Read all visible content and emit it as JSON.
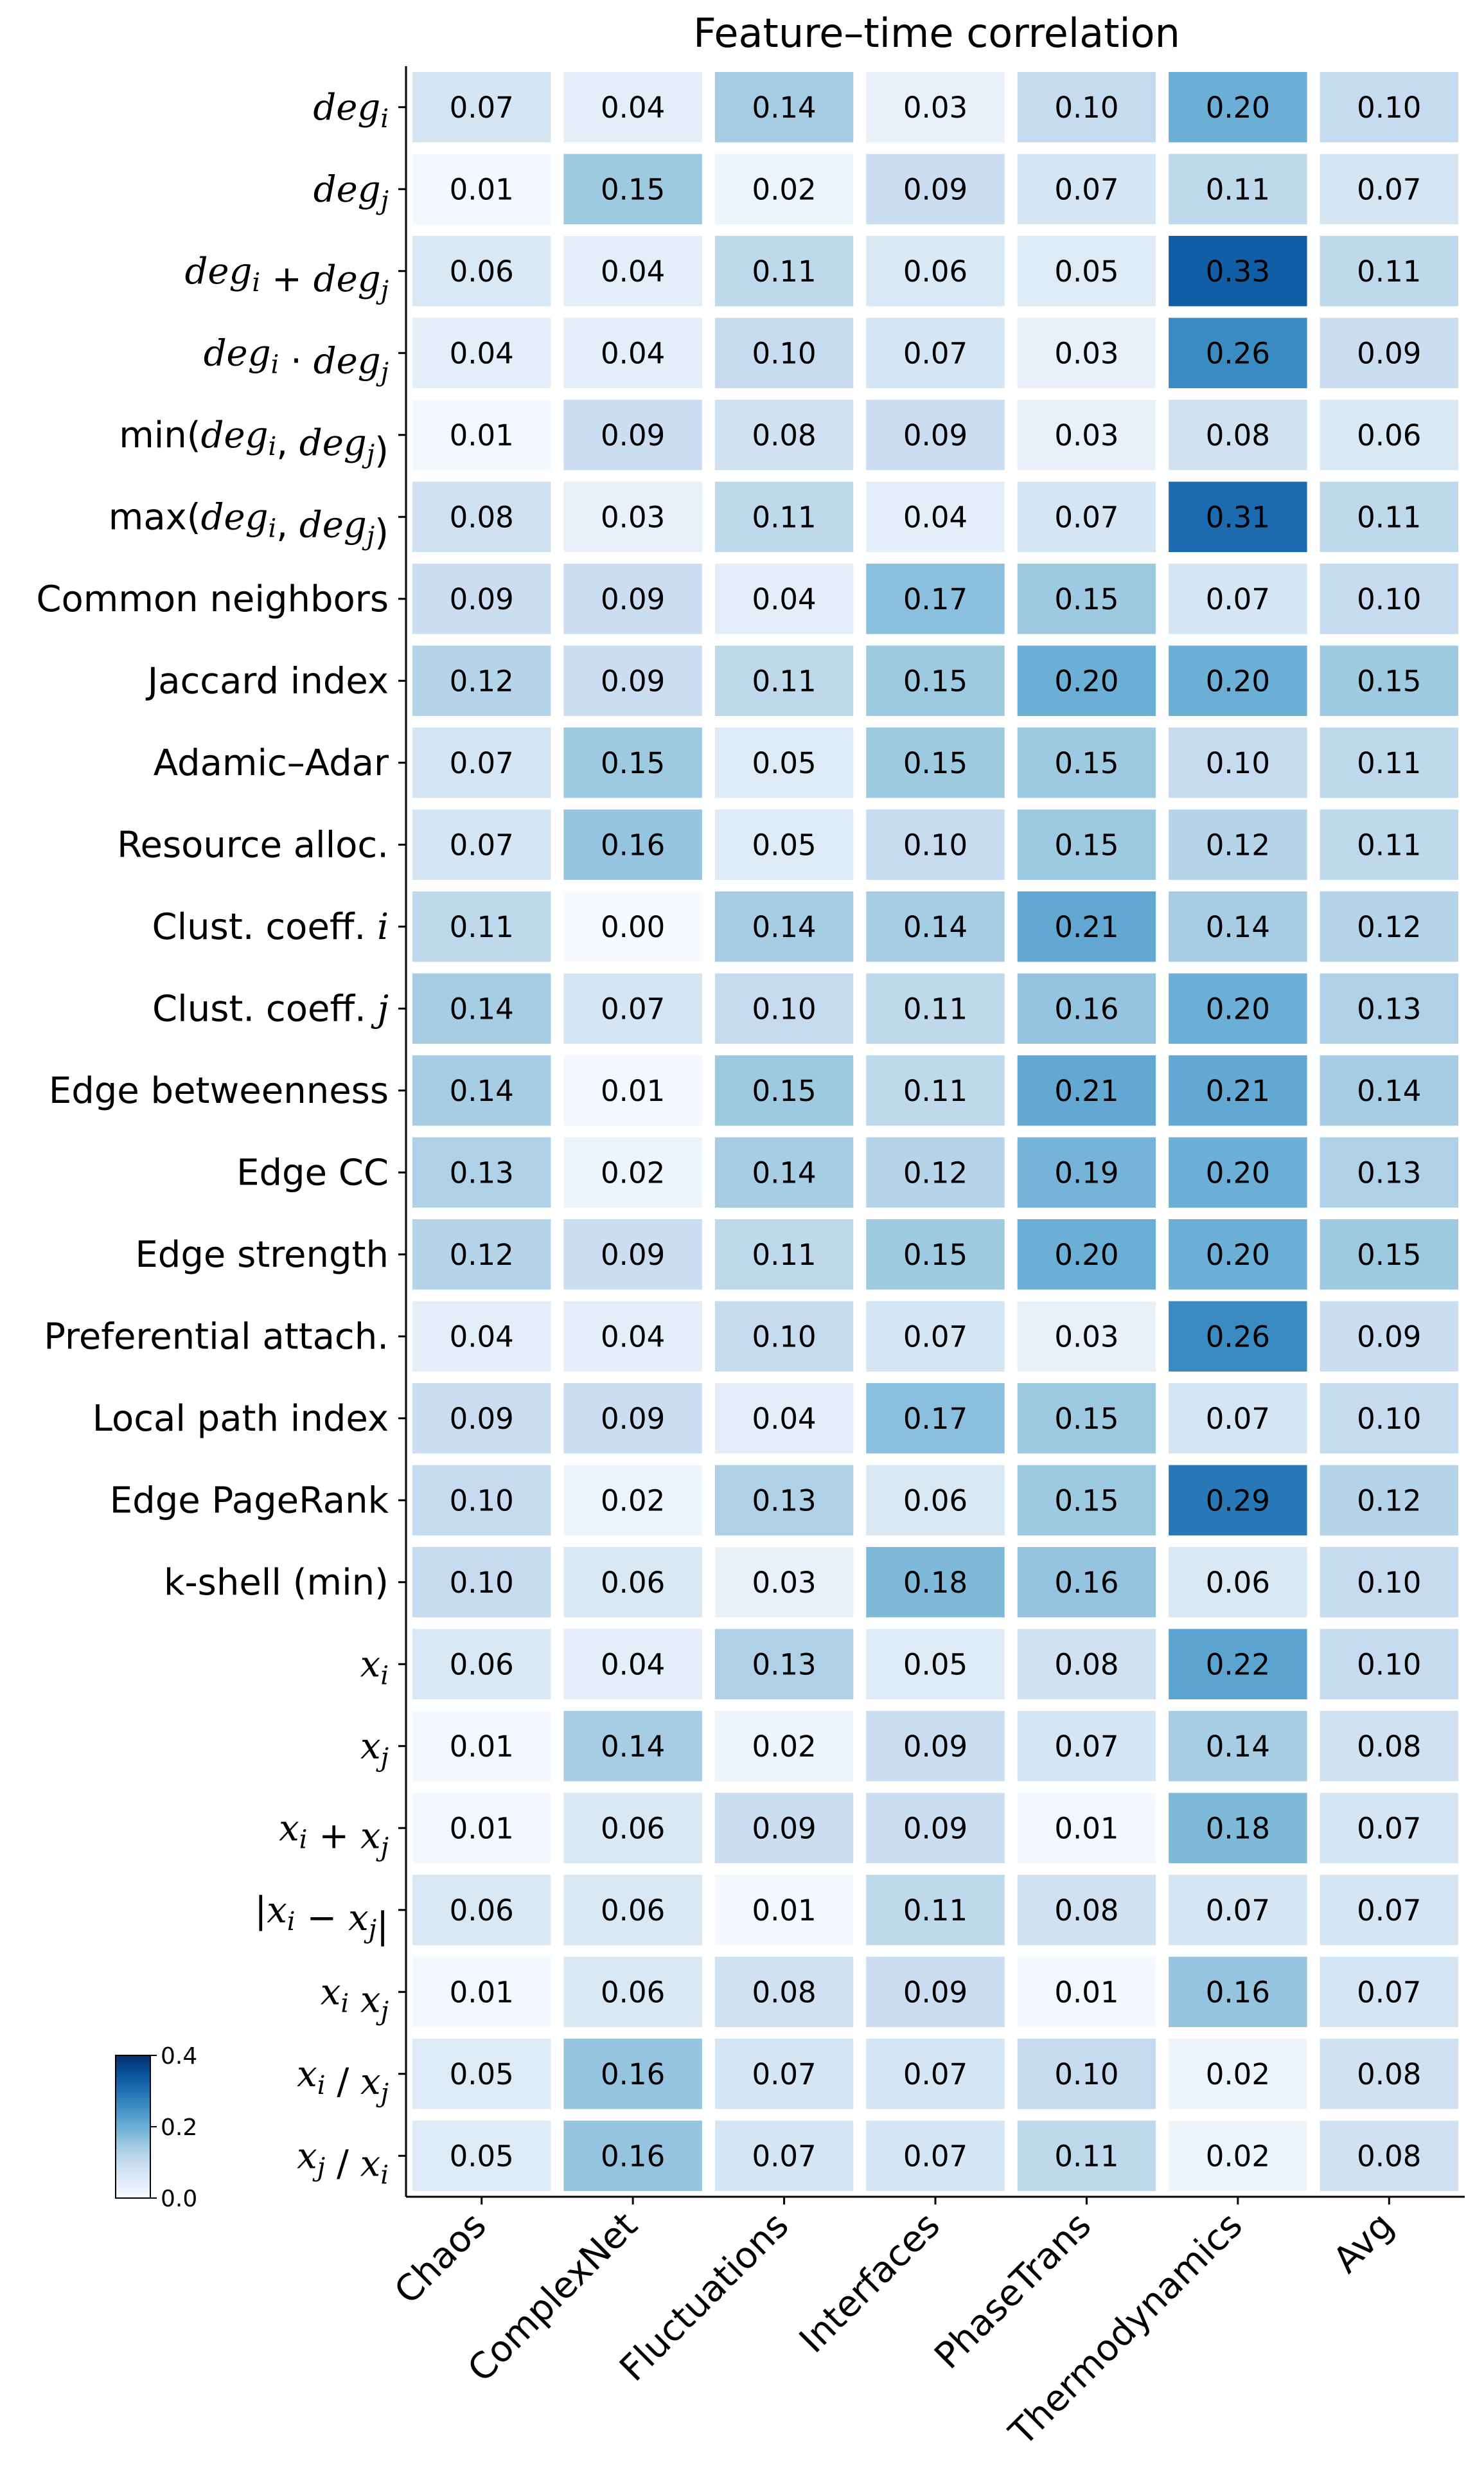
{
  "chart_data": {
    "type": "heatmap",
    "title": "Feature–time correlation",
    "columns": [
      "Chaos",
      "ComplexNet",
      "Fluctuations",
      "Interfaces",
      "PhaseTrans",
      "Thermodynamics",
      "Avg"
    ],
    "rows": [
      {
        "label": "deg_i",
        "values": [
          0.07,
          0.04,
          0.14,
          0.03,
          0.1,
          0.2,
          0.1
        ]
      },
      {
        "label": "deg_j",
        "values": [
          0.01,
          0.15,
          0.02,
          0.09,
          0.07,
          0.11,
          0.07
        ]
      },
      {
        "label": "deg_i + deg_j",
        "values": [
          0.06,
          0.04,
          0.11,
          0.06,
          0.05,
          0.33,
          0.11
        ]
      },
      {
        "label": "deg_i · deg_j",
        "values": [
          0.04,
          0.04,
          0.1,
          0.07,
          0.03,
          0.26,
          0.09
        ]
      },
      {
        "label": "min(deg_i, deg_j)",
        "values": [
          0.01,
          0.09,
          0.08,
          0.09,
          0.03,
          0.08,
          0.06
        ]
      },
      {
        "label": "max(deg_i, deg_j)",
        "values": [
          0.08,
          0.03,
          0.11,
          0.04,
          0.07,
          0.31,
          0.11
        ]
      },
      {
        "label": "Common neighbors",
        "values": [
          0.09,
          0.09,
          0.04,
          0.17,
          0.15,
          0.07,
          0.1
        ]
      },
      {
        "label": "Jaccard index",
        "values": [
          0.12,
          0.09,
          0.11,
          0.15,
          0.2,
          0.2,
          0.15
        ]
      },
      {
        "label": "Adamic–Adar",
        "values": [
          0.07,
          0.15,
          0.05,
          0.15,
          0.15,
          0.1,
          0.11
        ]
      },
      {
        "label": "Resource alloc.",
        "values": [
          0.07,
          0.16,
          0.05,
          0.1,
          0.15,
          0.12,
          0.11
        ]
      },
      {
        "label": "Clust. coeff. i",
        "values": [
          0.11,
          0.0,
          0.14,
          0.14,
          0.21,
          0.14,
          0.12
        ]
      },
      {
        "label": "Clust. coeff. j",
        "values": [
          0.14,
          0.07,
          0.1,
          0.11,
          0.16,
          0.2,
          0.13
        ]
      },
      {
        "label": "Edge betweenness",
        "values": [
          0.14,
          0.01,
          0.15,
          0.11,
          0.21,
          0.21,
          0.14
        ]
      },
      {
        "label": "Edge CC",
        "values": [
          0.13,
          0.02,
          0.14,
          0.12,
          0.19,
          0.2,
          0.13
        ]
      },
      {
        "label": "Edge strength",
        "values": [
          0.12,
          0.09,
          0.11,
          0.15,
          0.2,
          0.2,
          0.15
        ]
      },
      {
        "label": "Preferential attach.",
        "values": [
          0.04,
          0.04,
          0.1,
          0.07,
          0.03,
          0.26,
          0.09
        ]
      },
      {
        "label": "Local path index",
        "values": [
          0.09,
          0.09,
          0.04,
          0.17,
          0.15,
          0.07,
          0.1
        ]
      },
      {
        "label": "Edge PageRank",
        "values": [
          0.1,
          0.02,
          0.13,
          0.06,
          0.15,
          0.29,
          0.12
        ]
      },
      {
        "label": "k-shell (min)",
        "values": [
          0.1,
          0.06,
          0.03,
          0.18,
          0.16,
          0.06,
          0.1
        ]
      },
      {
        "label": "x_i",
        "values": [
          0.06,
          0.04,
          0.13,
          0.05,
          0.08,
          0.22,
          0.1
        ]
      },
      {
        "label": "x_j",
        "values": [
          0.01,
          0.14,
          0.02,
          0.09,
          0.07,
          0.14,
          0.08
        ]
      },
      {
        "label": "x_i + x_j",
        "values": [
          0.01,
          0.06,
          0.09,
          0.09,
          0.01,
          0.18,
          0.07
        ]
      },
      {
        "label": "|x_i − x_j|",
        "values": [
          0.06,
          0.06,
          0.01,
          0.11,
          0.08,
          0.07,
          0.07
        ]
      },
      {
        "label": "x_i x_j",
        "values": [
          0.01,
          0.06,
          0.08,
          0.09,
          0.01,
          0.16,
          0.07
        ]
      },
      {
        "label": "x_i / x_j",
        "values": [
          0.05,
          0.16,
          0.07,
          0.07,
          0.1,
          0.02,
          0.08
        ]
      },
      {
        "label": "x_j / x_i",
        "values": [
          0.05,
          0.16,
          0.07,
          0.07,
          0.11,
          0.02,
          0.08
        ]
      }
    ],
    "colorbar": {
      "range": [
        0.0,
        0.4
      ],
      "ticks": [
        "0.0",
        "0.2",
        "0.4"
      ],
      "colormap": "Blues"
    },
    "value_format": "2 decimals"
  }
}
